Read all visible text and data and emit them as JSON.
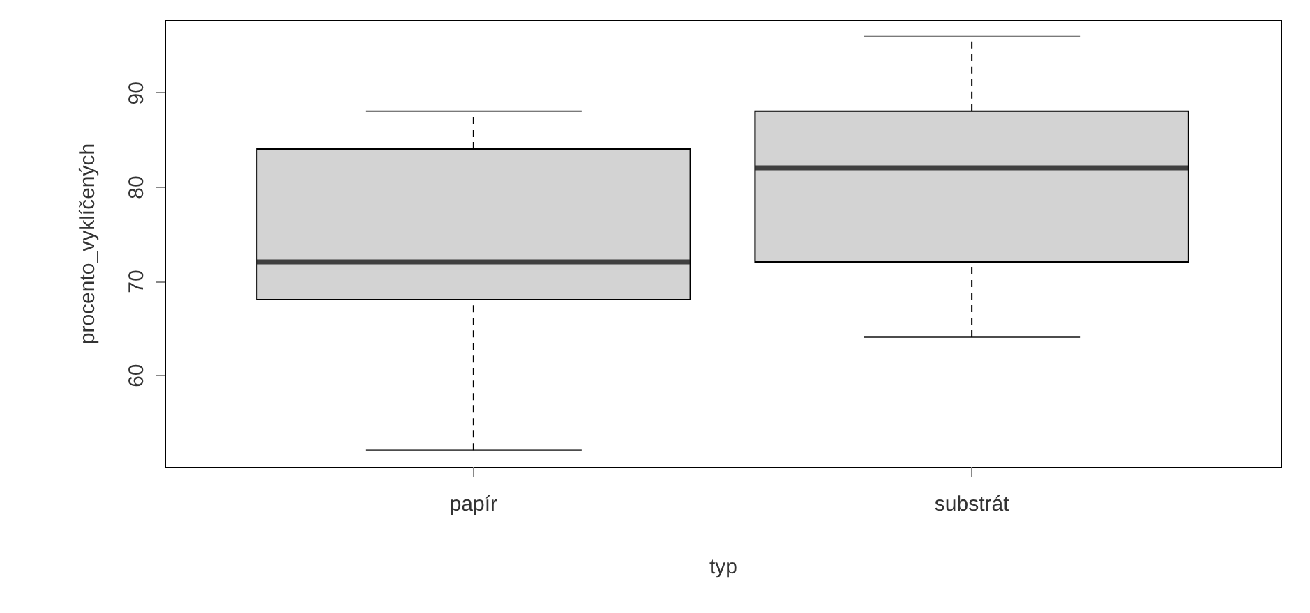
{
  "chart_data": {
    "type": "box",
    "xlabel": "typ",
    "ylabel": "procento_vyklíčených",
    "categories": [
      "papír",
      "substrát"
    ],
    "boxes": [
      {
        "low": 52,
        "q1": 68,
        "median": 72,
        "q3": 84,
        "high": 88
      },
      {
        "low": 64,
        "q1": 72,
        "median": 82,
        "q3": 88,
        "high": 96
      }
    ],
    "color": "#d3d3d3",
    "ylim": [
      50.24,
      97.76
    ],
    "yticks": [
      60,
      70,
      80,
      90
    ],
    "grid": false
  }
}
